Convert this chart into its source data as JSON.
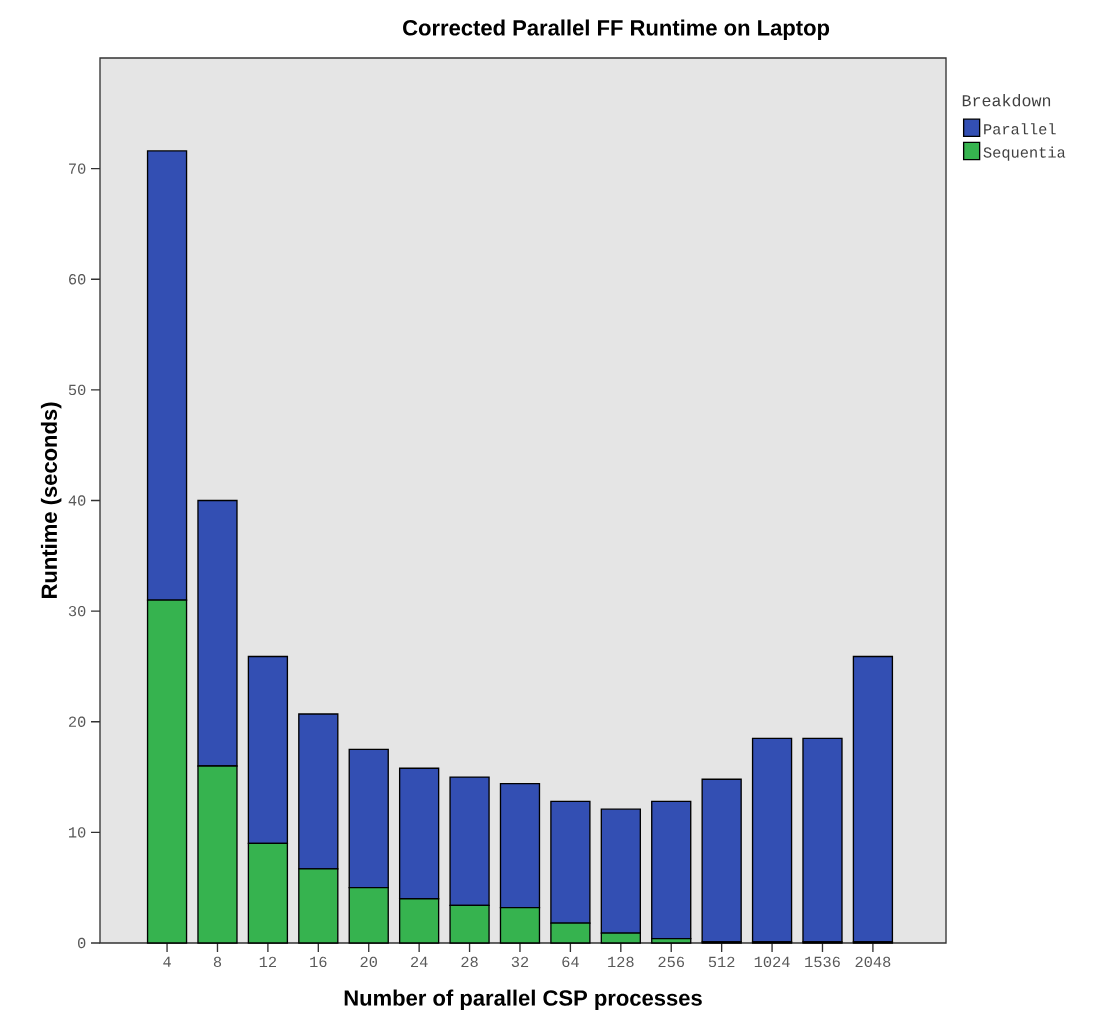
{
  "chart_data": {
    "type": "bar",
    "stacked": true,
    "title": "Corrected Parallel FF Runtime on Laptop",
    "xlabel": "Number of parallel CSP processes",
    "ylabel": "Runtime (seconds)",
    "legend_title": "Breakdown",
    "legend": "right",
    "categories": [
      "4",
      "8",
      "12",
      "16",
      "20",
      "24",
      "28",
      "32",
      "64",
      "128",
      "256",
      "512",
      "1024",
      "1536",
      "2048"
    ],
    "series": [
      {
        "name": "Sequentia",
        "color": "#36b34f",
        "values": [
          31.0,
          16.0,
          9.0,
          6.7,
          5.0,
          4.0,
          3.4,
          3.2,
          1.8,
          0.9,
          0.4,
          0.1,
          0.1,
          0.1,
          0.1
        ]
      },
      {
        "name": "Parallel",
        "color": "#334fb3",
        "values": [
          40.6,
          24.0,
          16.9,
          14.0,
          12.5,
          11.8,
          11.6,
          11.2,
          11.0,
          11.2,
          12.4,
          14.7,
          18.4,
          18.4,
          25.8
        ]
      }
    ],
    "ylim": [
      0,
      80
    ],
    "yticks": [
      0,
      10,
      20,
      30,
      40,
      50,
      60,
      70
    ],
    "grid": false
  }
}
